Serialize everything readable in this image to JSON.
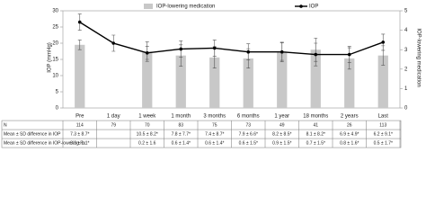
{
  "chart_data": {
    "type": "bar-line",
    "categories": [
      "Pre",
      "1 day",
      "1 week",
      "1 month",
      "3 months",
      "6 months",
      "1 year",
      "18 months",
      "2 years",
      "Last"
    ],
    "ylabel": "IOP (mmHg)",
    "y2label": "IOP-lowering medication",
    "ylim": [
      0,
      30
    ],
    "yticks": [
      0,
      5,
      10,
      15,
      20,
      25,
      30
    ],
    "y2lim": [
      0,
      5
    ],
    "y2ticks": [
      0,
      1,
      2,
      3,
      4,
      5
    ],
    "legend": "top",
    "series": [
      {
        "name": "IOP-lowering medication",
        "type": "bar",
        "axis": "y2",
        "color": "#c8c8c8",
        "values": [
          3.25,
          null,
          2.9,
          2.7,
          2.6,
          2.55,
          2.9,
          3.0,
          2.55,
          2.7
        ],
        "errors": [
          0.25,
          null,
          0.5,
          0.55,
          0.55,
          0.5,
          0.45,
          0.6,
          0.55,
          0.5
        ]
      },
      {
        "name": "IOP",
        "type": "line",
        "color": "#000000",
        "values": [
          26.5,
          20,
          17,
          18.2,
          18.5,
          17.3,
          17.3,
          16.5,
          16.5,
          20.3
        ],
        "errors": [
          2.5,
          2.5,
          2,
          2.5,
          2.5,
          2.5,
          3,
          3.5,
          2.5,
          2.5
        ]
      }
    ],
    "table": {
      "rows": [
        {
          "label": "N",
          "cells": [
            "114",
            "79",
            "70",
            "83",
            "75",
            "73",
            "49",
            "41",
            "26",
            "113"
          ]
        },
        {
          "label": "Mean ± SD difference in IOP",
          "cells": [
            "7.3 ± 8.7*",
            null,
            "10.5 ± 8.2*",
            "7.8 ± 7.7*",
            "7.4 ± 8.7*",
            "7.9 ± 6.6*",
            "8.2 ± 8.5*",
            "8.1 ± 8.2*",
            "6.9 ± 4.9*",
            "6.2 ± 9.1*"
          ]
        },
        {
          "label": "Mean ± SD difference in IOP-lowering Rx",
          "cells": [
            "3.3 ± 1.1*",
            null,
            "0.2 ± 1.6",
            "0.6 ± 1.4*",
            "0.6 ± 1.4*",
            "0.6 ± 1.5*",
            "0.9 ± 1.5*",
            "0.7 ± 1.5*",
            "0.8 ± 1.6*",
            "0.5 ± 1.7*"
          ]
        }
      ]
    }
  }
}
